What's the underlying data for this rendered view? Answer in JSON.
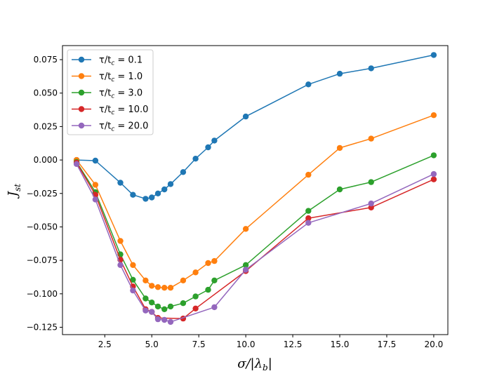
{
  "chart_data": {
    "type": "line",
    "title": "",
    "xlabel": "σ/|λ_b|",
    "ylabel": "J_st",
    "xlim": [
      0.25,
      20.75
    ],
    "ylim": [
      -0.1305,
      0.0855
    ],
    "xticks": [
      2.5,
      5.0,
      7.5,
      10.0,
      12.5,
      15.0,
      17.5,
      20.0
    ],
    "xtick_labels": [
      "2.5",
      "5.0",
      "7.5",
      "10.0",
      "12.5",
      "15.0",
      "17.5",
      "20.0"
    ],
    "yticks": [
      -0.125,
      -0.1,
      -0.075,
      -0.05,
      -0.025,
      0.0,
      0.025,
      0.05,
      0.075
    ],
    "ytick_labels": [
      "−0.125",
      "−0.100",
      "−0.075",
      "−0.050",
      "−0.025",
      "0.000",
      "0.025",
      "0.050",
      "0.075"
    ],
    "grid": false,
    "legend_position": "top-left",
    "series": [
      {
        "name": "τ/t_c = 0.1",
        "prefix": "τ/t",
        "sub": "c",
        "suffix": " = 0.1",
        "color": "#1f77b4",
        "x": [
          1.0,
          2.0,
          3.33,
          4.0,
          4.67,
          5.0,
          5.33,
          5.67,
          6.0,
          6.67,
          7.33,
          8.0,
          8.33,
          10.0,
          13.33,
          15.0,
          16.67,
          20.0
        ],
        "y": [
          0.0,
          -0.0005,
          -0.017,
          -0.026,
          -0.029,
          -0.028,
          -0.025,
          -0.022,
          -0.018,
          -0.009,
          0.001,
          0.0095,
          0.0145,
          0.0325,
          0.0565,
          0.0645,
          0.0685,
          0.0785
        ]
      },
      {
        "name": "τ/t_c = 1.0",
        "prefix": "τ/t",
        "sub": "c",
        "suffix": " = 1.0",
        "color": "#ff7f0e",
        "x": [
          1.0,
          2.0,
          3.33,
          4.0,
          4.67,
          5.0,
          5.33,
          5.67,
          6.0,
          6.67,
          7.33,
          8.0,
          8.33,
          10.0,
          13.33,
          15.0,
          16.67,
          20.0
        ],
        "y": [
          0.0,
          -0.0185,
          -0.0605,
          -0.0785,
          -0.09,
          -0.094,
          -0.095,
          -0.0955,
          -0.0955,
          -0.09,
          -0.084,
          -0.077,
          -0.0755,
          -0.0515,
          -0.011,
          0.009,
          0.016,
          0.0335
        ]
      },
      {
        "name": "τ/t_c = 3.0",
        "prefix": "τ/t",
        "sub": "c",
        "suffix": " = 3.0",
        "color": "#2ca02c",
        "x": [
          1.0,
          2.0,
          3.33,
          4.0,
          4.67,
          5.0,
          5.33,
          5.67,
          6.0,
          6.67,
          7.33,
          8.0,
          8.33,
          10.0,
          13.33,
          15.0,
          16.67,
          20.0
        ],
        "y": [
          -0.0015,
          -0.024,
          -0.0705,
          -0.0895,
          -0.1035,
          -0.1065,
          -0.1095,
          -0.1115,
          -0.1095,
          -0.107,
          -0.102,
          -0.097,
          -0.09,
          -0.0785,
          -0.038,
          -0.022,
          -0.0165,
          0.0035
        ]
      },
      {
        "name": "τ/t_c = 10.0",
        "prefix": "τ/t",
        "sub": "c",
        "suffix": " = 10.0",
        "color": "#d62728",
        "x": [
          1.0,
          2.0,
          3.33,
          4.0,
          4.67,
          5.0,
          5.33,
          6.67,
          7.33,
          10.0,
          13.33,
          16.67,
          20.0
        ],
        "y": [
          -0.002,
          -0.026,
          -0.0745,
          -0.0945,
          -0.1115,
          -0.1135,
          -0.118,
          -0.1185,
          -0.111,
          -0.083,
          -0.0435,
          -0.0355,
          -0.0145
        ]
      },
      {
        "name": "τ/t_c = 20.0",
        "prefix": "τ/t",
        "sub": "c",
        "suffix": " = 20.0",
        "color": "#9467bd",
        "x": [
          1.0,
          2.0,
          3.33,
          4.0,
          4.67,
          5.0,
          5.33,
          5.67,
          6.0,
          8.33,
          10.0,
          13.33,
          16.67,
          20.0
        ],
        "y": [
          -0.003,
          -0.0295,
          -0.0785,
          -0.0975,
          -0.1125,
          -0.1135,
          -0.119,
          -0.1195,
          -0.121,
          -0.11,
          -0.082,
          -0.047,
          -0.0325,
          -0.0105
        ]
      }
    ]
  }
}
